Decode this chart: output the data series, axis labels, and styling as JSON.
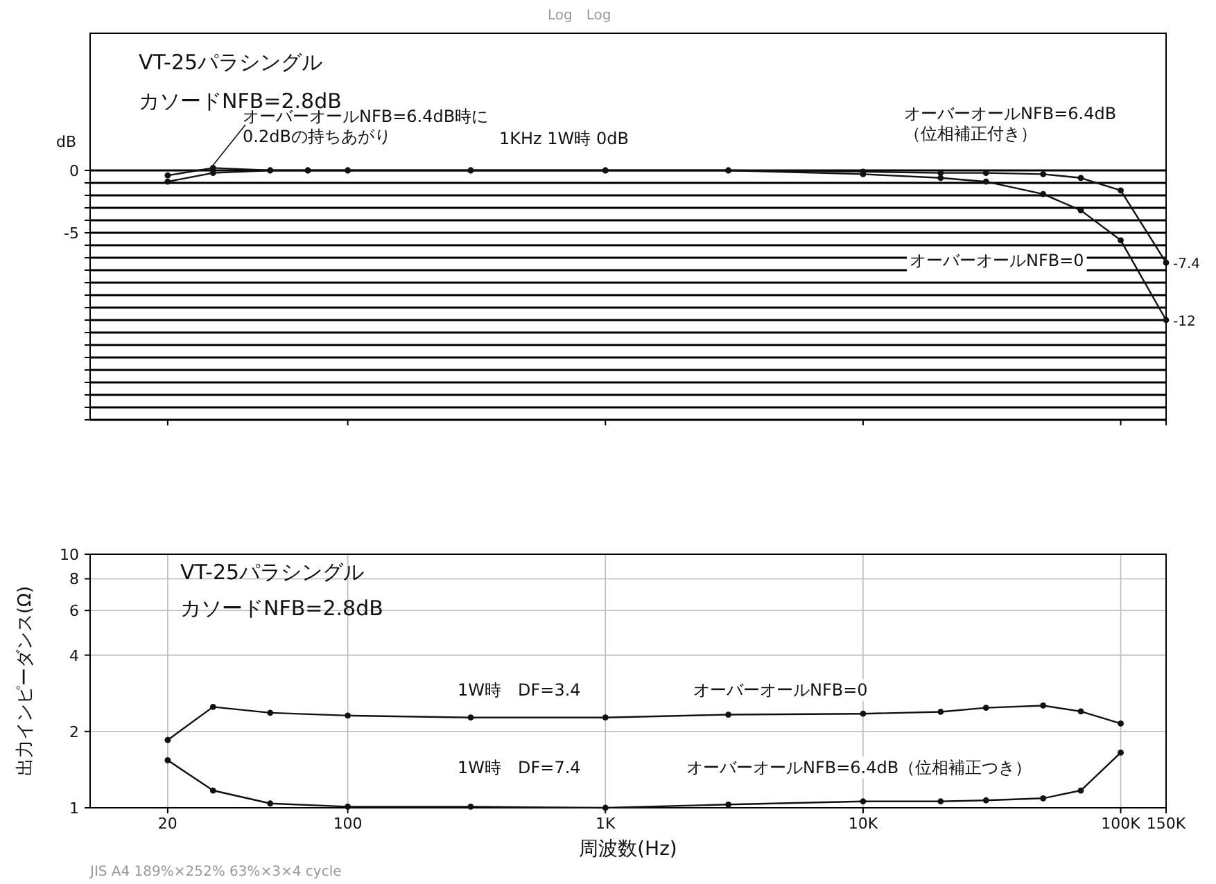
{
  "chart_data": [
    {
      "type": "line",
      "title": "VT-25パラシングル",
      "subtitle": "カソードNFB=2.8dB",
      "ylabel": "dB",
      "log": "x",
      "grid": "y",
      "marker": "circle",
      "line_style": "solid",
      "legend": false,
      "tick_labels": "y",
      "x": [
        20,
        30,
        50,
        70,
        100,
        300,
        1000,
        3000,
        10000,
        20000,
        30000,
        50000,
        70000,
        100000,
        150000
      ],
      "xlim": [
        10,
        150000
      ],
      "xticks": [
        {
          "value": 20,
          "label": null
        },
        {
          "value": 100,
          "label": null
        },
        {
          "value": 1000,
          "label": null
        },
        {
          "value": 10000,
          "label": null
        },
        {
          "value": 100000,
          "label": null
        },
        {
          "value": 150000,
          "label": null
        }
      ],
      "ylim": [
        -20,
        11
      ],
      "yticks": [
        0,
        {
          "value": -1,
          "label": null
        },
        {
          "value": -2,
          "label": null
        },
        {
          "value": -3,
          "label": null
        },
        {
          "value": -4,
          "label": null
        },
        -5,
        {
          "value": -6,
          "label": null
        },
        {
          "value": -7,
          "label": null
        },
        {
          "value": -8,
          "label": null
        },
        {
          "value": -9,
          "label": null
        },
        {
          "value": -10,
          "label": null
        },
        {
          "value": -11,
          "label": null
        },
        {
          "value": -12,
          "label": null
        },
        {
          "value": -13,
          "label": null
        },
        {
          "value": -14,
          "label": null
        },
        {
          "value": -15,
          "label": null
        },
        {
          "value": -16,
          "label": null
        },
        {
          "value": -17,
          "label": null
        },
        {
          "value": -18,
          "label": null
        },
        {
          "value": -19,
          "label": null
        },
        {
          "value": -20,
          "label": null
        }
      ],
      "series": [
        {
          "name": "オーバーオールNFB=6.4dB\n（位相補正付き）",
          "color": "#111111",
          "values": [
            -0.4,
            0.2,
            0,
            0,
            0,
            0,
            0,
            0,
            -0.1,
            -0.2,
            -0.2,
            -0.3,
            -0.6,
            -1.6,
            -7.4
          ],
          "value_labels": [
            null,
            null,
            null,
            null,
            null,
            null,
            null,
            null,
            null,
            null,
            null,
            null,
            null,
            null,
            "-7.4"
          ]
        },
        {
          "name": "オーバーオールNFB=0",
          "color": "#111111",
          "values": [
            -0.9,
            -0.2,
            0,
            0,
            0,
            0,
            0,
            0,
            -0.3,
            -0.6,
            -0.9,
            -1.9,
            -3.2,
            -5.6,
            -12
          ],
          "value_labels": [
            null,
            null,
            null,
            null,
            null,
            null,
            null,
            null,
            null,
            null,
            null,
            null,
            null,
            null,
            "-12"
          ]
        }
      ],
      "annotations": [
        {
          "text": "オーバーオールNFB=6.4dB時に\n0.2dBの持ちあがり",
          "x": 30,
          "y": 0.2
        },
        "1KHz 1W時 0dB",
        "Log　Log"
      ]
    },
    {
      "type": "line",
      "title": "VT-25パラシングル",
      "subtitle": "カソードNFB=2.8dB",
      "xlabel": "周波数(Hz)",
      "ylabel": "出力インピーダンス(Ω)",
      "log": "xy",
      "grid": true,
      "marker": "circle",
      "line_style": "solid",
      "legend": false,
      "x": [
        20,
        30,
        50,
        100,
        300,
        1000,
        3000,
        10000,
        20000,
        30000,
        50000,
        70000,
        100000
      ],
      "xlim": [
        10,
        150000
      ],
      "xticks": [
        {
          "value": 20,
          "label": "20"
        },
        100,
        {
          "value": 1000,
          "label": "1K"
        },
        {
          "value": 10000,
          "label": "10K"
        },
        {
          "value": 100000,
          "label": "100K"
        },
        {
          "value": 150000,
          "label": "150K"
        }
      ],
      "ylim": [
        1,
        10
      ],
      "yticks": [
        1,
        2,
        4,
        6,
        8,
        10
      ],
      "series": [
        {
          "name": "オーバーオールNFB=0",
          "color": "#111111",
          "values": [
            1.85,
            2.5,
            2.37,
            2.31,
            2.27,
            2.27,
            2.33,
            2.35,
            2.39,
            2.48,
            2.53,
            2.4,
            2.15
          ]
        },
        {
          "name": "オーバーオールNFB=6.4dB（位相補正つき）",
          "color": "#111111",
          "values": [
            1.54,
            1.17,
            1.04,
            1.01,
            1.01,
            1.0,
            1.03,
            1.06,
            1.06,
            1.07,
            1.09,
            1.17,
            1.65
          ]
        }
      ],
      "annotations": [
        "1W時　DF=3.4",
        "1W時　DF=7.4",
        "JIS A4 189%×252% 63%×3×4 cycle"
      ]
    }
  ]
}
